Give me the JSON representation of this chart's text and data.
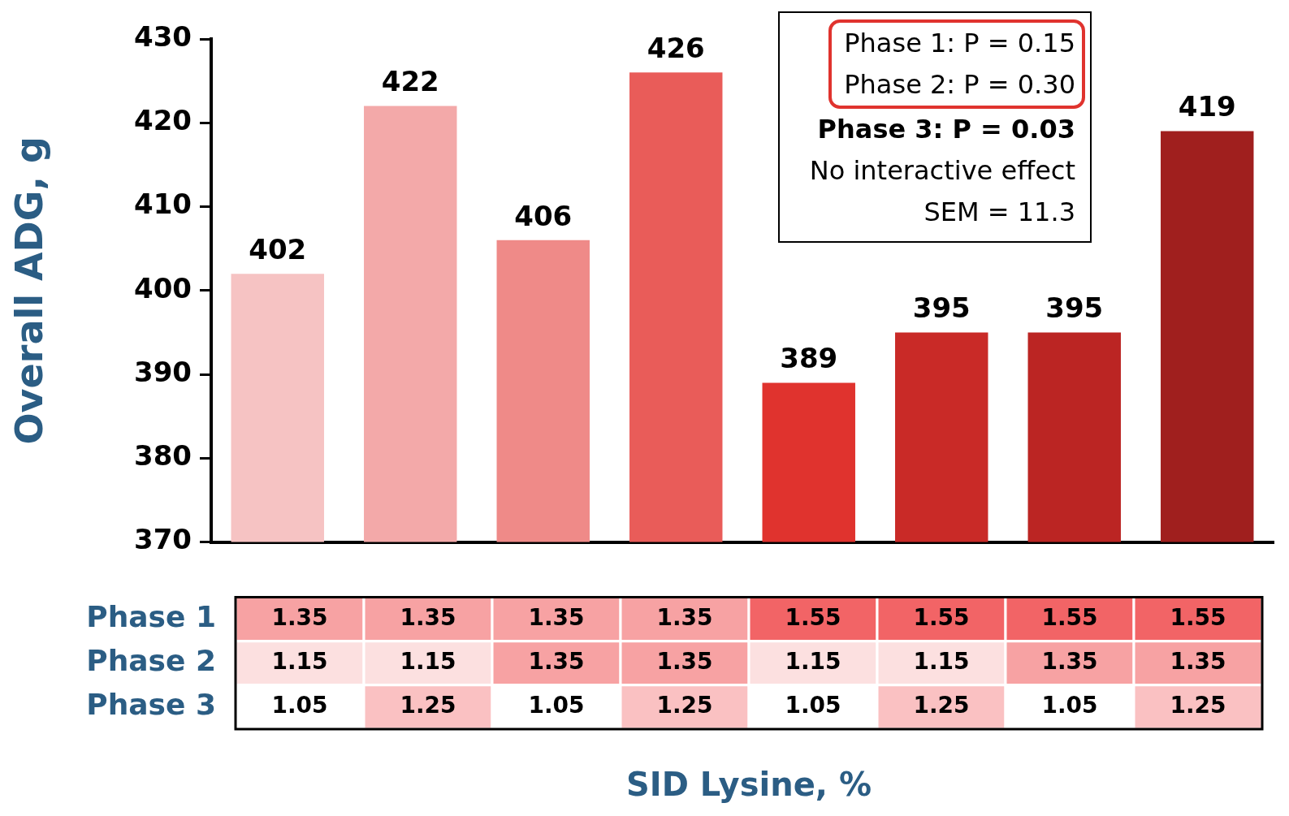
{
  "chart_data": [
    {
      "type": "bar",
      "ylabel": "Overall ADG, g",
      "categories": [
        null,
        null,
        null,
        null,
        null,
        null,
        null,
        null
      ],
      "values": [
        402,
        422,
        406,
        426,
        389,
        395,
        395,
        419
      ],
      "colors": [
        "#f6c3c3",
        "#f3a9a9",
        "#ef8a88",
        "#e95c59",
        "#e0332e",
        "#c92a27",
        "#bb2523",
        "#a01f1e"
      ],
      "ylim": [
        370,
        430
      ],
      "yticks": [
        370,
        380,
        390,
        400,
        410,
        420,
        430
      ],
      "grid": false,
      "data_labels": true,
      "annotations": [
        "Phase 1: P = 0.15",
        "Phase 2: P = 0.30",
        "Phase 3: P = 0.03",
        "No interactive effect",
        "SEM = 11.3"
      ]
    },
    {
      "type": "heatmap",
      "xlabel": "SID Lysine, %",
      "data_labels": true,
      "categories": [
        null,
        null,
        null,
        null,
        null,
        null,
        null,
        null
      ],
      "y_categories": [
        "Phase 1",
        "Phase 2",
        "Phase 3"
      ],
      "cells": [
        [
          1.35,
          1.35,
          1.35,
          1.35,
          1.55,
          1.55,
          1.55,
          1.55
        ],
        [
          1.15,
          1.15,
          1.35,
          1.35,
          1.15,
          1.15,
          1.35,
          1.35
        ],
        [
          1.05,
          1.25,
          1.05,
          1.25,
          1.05,
          1.25,
          1.05,
          1.25
        ]
      ]
    }
  ]
}
